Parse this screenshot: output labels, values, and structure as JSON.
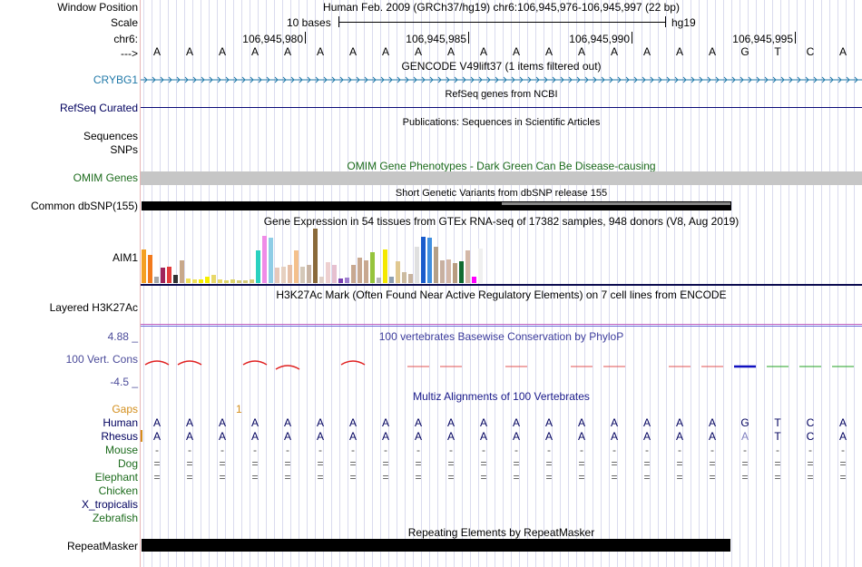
{
  "header": {
    "window_position_label": "Window Position",
    "scale_label": "Scale",
    "chrom_label": "chr6:",
    "strand_label": "--->",
    "assembly_text": "Human Feb. 2009 (GRCh37/hg19)   chr6:106,945,976-106,945,997 (22 bp)",
    "scale_text": "10 bases",
    "scale_db": "hg19",
    "ticks": [
      "106,945,980",
      "106,945,985",
      "106,945,990",
      "106,945,995"
    ]
  },
  "sequence": [
    "A",
    "A",
    "A",
    "A",
    "A",
    "A",
    "A",
    "A",
    "A",
    "A",
    "A",
    "A",
    "A",
    "A",
    "A",
    "A",
    "A",
    "A",
    "G",
    "T",
    "C",
    "A"
  ],
  "tracks": {
    "gencode": {
      "title": "GENCODE V49lift37 (1 items filtered out)",
      "label": "CRYBG1",
      "color": "#1f78a8"
    },
    "refseq": {
      "title": "RefSeq genes from NCBI",
      "label": "RefSeq Curated",
      "color": "#0c0c78"
    },
    "publications": {
      "title": "Publications: Sequences in Scientific Articles",
      "label": "Sequences"
    },
    "snps_label": "SNPs",
    "omim": {
      "title": "OMIM Gene Phenotypes - Dark Green Can Be Disease-causing",
      "label": "OMIM Genes",
      "color": "#1c6b1c"
    },
    "dbsnp": {
      "title": "Short Genetic Variants from dbSNP release 155",
      "label": "Common dbSNP(155)"
    },
    "gtex": {
      "title": "Gene Expression in 54 tissues from GTEx RNA-seq of 17382 samples, 948 donors (V8, Aug 2019)",
      "label": "AIM1"
    },
    "h3k27ac": {
      "title": "H3K27Ac Mark (Often Found Near Active Regulatory Elements) on 7 cell lines from ENCODE",
      "label": "Layered H3K27Ac"
    },
    "phylop": {
      "title": "100 vertebrates Basewise Conservation by PhyloP",
      "label": "100 Vert. Cons",
      "max": "4.88 _",
      "min": "-4.5 _"
    },
    "multiz": {
      "title": "Multiz Alignments of 100 Vertebrates",
      "gaps_label": "Gaps",
      "gap_marker": "1",
      "species": [
        "Human",
        "Rhesus",
        "Mouse",
        "Dog",
        "Elephant",
        "Chicken",
        "X_tropicalis",
        "Zebrafish"
      ],
      "rhesus": [
        "A",
        "A",
        "A",
        "A",
        "A",
        "A",
        "A",
        "A",
        "A",
        "A",
        "A",
        "A",
        "A",
        "A",
        "A",
        "A",
        "A",
        "A",
        "A",
        "T",
        "C",
        "A"
      ],
      "mouse_char": "-",
      "dog_char": "=",
      "elephant_char": "="
    },
    "repeatmasker": {
      "title": "Repeating Elements by RepeatMasker",
      "label": "RepeatMasker"
    }
  },
  "gtex_values": [
    0.62,
    0.52,
    0.12,
    0.28,
    0.3,
    0.15,
    0.42,
    0.08,
    0.06,
    0.06,
    0.12,
    0.15,
    0.06,
    0.05,
    0.06,
    0.05,
    0.05,
    0.06,
    0.6,
    0.87,
    0.84,
    0.28,
    0.3,
    0.34,
    0.6,
    0.3,
    0.34,
    1.0,
    0.12,
    0.38,
    0.34,
    0.08,
    0.1,
    0.34,
    0.46,
    0.42,
    0.56,
    0.1,
    0.62,
    0.12,
    0.4,
    0.2,
    0.17,
    0.66,
    0.85,
    0.83,
    0.66,
    0.42,
    0.44,
    0.36,
    0.4,
    0.6,
    0.12,
    0.64
  ],
  "gtex_colors": [
    "#f4a023",
    "#f27a1d",
    "#a7a7a7",
    "#a0245a",
    "#e33c3c",
    "#333333",
    "#c8a88a",
    "#f0e05a",
    "#f0e05a",
    "#f6ee00",
    "#f6ee00",
    "#e8d86a",
    "#e8d86a",
    "#ddd46a",
    "#ddd46a",
    "#d6cc7a",
    "#d6cc7a",
    "#d6cc7a",
    "#2ad1c0",
    "#ef8ce7",
    "#8ecde6",
    "#e6c8ba",
    "#e6d0c0",
    "#e6c0a8",
    "#f4c08c",
    "#d4c8b8",
    "#c8b4a4",
    "#8a6a3a",
    "#e0d0c8",
    "#eed0d0",
    "#e6c0d0",
    "#7a3fb3",
    "#a080d0",
    "#c8a890",
    "#c8a890",
    "#c8a890",
    "#96c43c",
    "#b8b8b8",
    "#f4e800",
    "#90a0b0",
    "#e0c890",
    "#ccbba0",
    "#c8b4a0",
    "#e0e0e0",
    "#1a5ccc",
    "#3f8edf",
    "#b4a088",
    "#c8b0a0",
    "#d4b8a8",
    "#b89c80",
    "#106b30",
    "#d4b8a8",
    "#ff00ff",
    "#f0f0f0"
  ],
  "phylop_positive": [
    0,
    1,
    3,
    4,
    6
  ],
  "phylop_negative": [
    8,
    9,
    11,
    13,
    14,
    16,
    17,
    18,
    19,
    20,
    21
  ]
}
